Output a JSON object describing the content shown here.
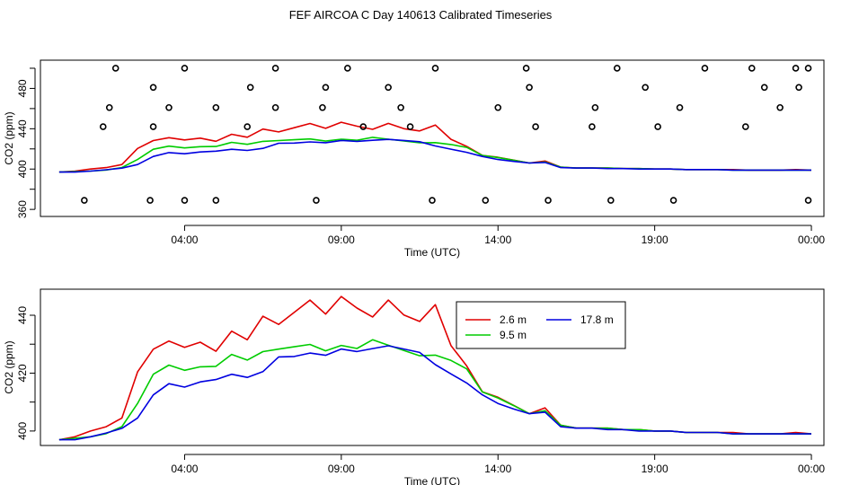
{
  "title": "FEF AIRCOA C  Day 140613  Calibrated Timeseries",
  "colors": {
    "s1": "#e00000",
    "s2": "#00cc00",
    "s3": "#0000e0",
    "text": "#000000"
  },
  "chart_data": [
    {
      "type": "scatter",
      "title": "FEF AIRCOA C  Day 140613  Calibrated Timeseries",
      "xlabel": "Time (UTC)",
      "ylabel": "CO2 (ppm)",
      "x_unit": "hours since 00:00 UTC (day 140613)",
      "xlim": [
        -0.6,
        24.4
      ],
      "ylim": [
        353,
        508
      ],
      "xticks": [
        4,
        9,
        14,
        19,
        24
      ],
      "xtick_labels": [
        "04:00",
        "09:00",
        "14:00",
        "19:00",
        "00:00"
      ],
      "yticks": [
        360,
        380,
        400,
        420,
        440,
        460,
        480,
        500
      ],
      "ytick_labels": [
        "360",
        "",
        "400",
        "",
        "440",
        "",
        "480",
        ""
      ],
      "series": [
        {
          "name": "2.6 m",
          "color_key": "s1",
          "kind": "line"
        },
        {
          "name": "9.5 m",
          "color_key": "s2",
          "kind": "line"
        },
        {
          "name": "17.8 m",
          "color_key": "s3",
          "kind": "line"
        }
      ],
      "markers": {
        "name": "calibration samples",
        "x": [
          1.8,
          4.0,
          6.9,
          9.2,
          12.0,
          14.9,
          17.8,
          20.6,
          22.1,
          23.5,
          23.9,
          3.0,
          6.1,
          8.5,
          10.5,
          15.0,
          18.7,
          22.5,
          23.6,
          1.6,
          3.5,
          5.0,
          6.9,
          8.4,
          10.9,
          14.0,
          17.1,
          19.8,
          23.0,
          1.4,
          3.0,
          6.0,
          9.7,
          11.2,
          15.2,
          17.0,
          19.1,
          21.9,
          0.8,
          2.9,
          4.0,
          5.0,
          8.2,
          11.9,
          13.6,
          15.6,
          17.6,
          19.6,
          23.9
        ],
        "y": [
          500,
          500,
          500,
          500,
          500,
          500,
          500,
          500,
          500,
          500,
          500,
          481,
          481,
          481,
          481,
          481,
          481,
          481,
          481,
          461,
          461,
          461,
          461,
          461,
          461,
          461,
          461,
          461,
          461,
          442,
          442,
          442,
          442,
          442,
          442,
          442,
          442,
          442,
          369,
          369,
          369,
          369,
          369,
          369,
          369,
          369,
          369,
          369,
          369
        ]
      },
      "plot_type": "line"
    },
    {
      "type": "line",
      "xlabel": "Time (UTC)",
      "ylabel": "CO2 (ppm)",
      "x_unit": "hours since 00:00 UTC (day 140613)",
      "xlim": [
        -0.6,
        24.4
      ],
      "ylim": [
        395,
        449
      ],
      "xticks": [
        4,
        9,
        14,
        19,
        24
      ],
      "xtick_labels": [
        "04:00",
        "09:00",
        "14:00",
        "19:00",
        "00:00"
      ],
      "yticks": [
        400,
        410,
        420,
        430,
        440
      ],
      "ytick_labels": [
        "400",
        "",
        "420",
        "",
        "440"
      ],
      "legend": {
        "position": "top-right",
        "entries": [
          "2.6 m",
          "9.5 m",
          "17.8 m"
        ]
      },
      "series": [
        {
          "name": "2.6 m",
          "color_key": "s1"
        },
        {
          "name": "9.5 m",
          "color_key": "s2"
        },
        {
          "name": "17.8 m",
          "color_key": "s3"
        }
      ]
    }
  ],
  "series_data": {
    "x": [
      0.0,
      0.5,
      1.0,
      1.5,
      2.0,
      2.5,
      3.0,
      3.5,
      4.0,
      4.5,
      5.0,
      5.5,
      6.0,
      6.5,
      7.0,
      7.5,
      8.0,
      8.5,
      9.0,
      9.5,
      10.0,
      10.5,
      11.0,
      11.5,
      12.0,
      12.5,
      13.0,
      13.5,
      14.0,
      14.5,
      15.0,
      15.5,
      16.0,
      16.5,
      17.0,
      17.5,
      18.0,
      18.5,
      19.0,
      19.5,
      20.0,
      20.5,
      21.0,
      21.5,
      22.0,
      22.5,
      23.0,
      23.5,
      24.0
    ],
    "s1": [
      397,
      398,
      400,
      401,
      404,
      420,
      428,
      431,
      429,
      431,
      428,
      435,
      432,
      440,
      437,
      441,
      445,
      440,
      446,
      442,
      439,
      445,
      440,
      438,
      444,
      430,
      423,
      414,
      412,
      409,
      406,
      408,
      402,
      401,
      401,
      401,
      400.5,
      400.5,
      400,
      400,
      399.5,
      399.5,
      399.5,
      399.5,
      399,
      399,
      399,
      399.5,
      399
    ],
    "s2": [
      397,
      397.5,
      398,
      399.5,
      402,
      410,
      420,
      423,
      421,
      422,
      422,
      426,
      424,
      427,
      428,
      429,
      430,
      428,
      430,
      429,
      432,
      430,
      428,
      426,
      426,
      424,
      421,
      413,
      411,
      408.5,
      406,
      407,
      402,
      401,
      401,
      401,
      400.5,
      400.5,
      400,
      400,
      399.5,
      399.5,
      399.5,
      399,
      399,
      399,
      399,
      399,
      399
    ],
    "s3": [
      397,
      397,
      398,
      399,
      400.5,
      404,
      412,
      416,
      415,
      417,
      418,
      420,
      419,
      421,
      426,
      426,
      427,
      426,
      428,
      427,
      428,
      429,
      428,
      427,
      423,
      420,
      417,
      413,
      410,
      408,
      406,
      406.5,
      401.5,
      401,
      401,
      400.5,
      400.5,
      400,
      400,
      400,
      399.5,
      399.5,
      399.5,
      399,
      399,
      399,
      399,
      399,
      399
    ]
  }
}
